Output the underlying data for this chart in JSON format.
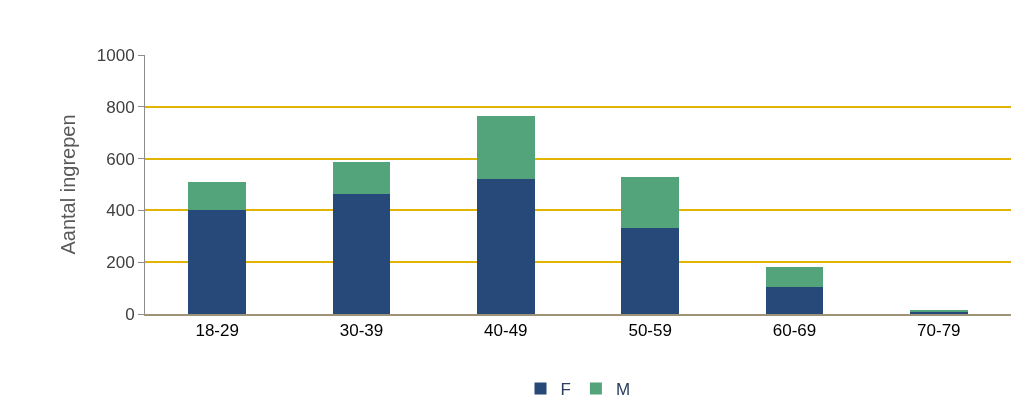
{
  "chart_data": {
    "type": "bar",
    "stacked": true,
    "ylabel": "Aantal ingrepen",
    "categories": [
      "18-29",
      "30-39",
      "40-49",
      "50-59",
      "60-69",
      "70-79"
    ],
    "series": [
      {
        "name": "F",
        "color": "#27497a",
        "values": [
          400,
          464,
          523,
          332,
          103,
          8
        ]
      },
      {
        "name": "M",
        "color": "#53a47b",
        "values": [
          108,
          122,
          241,
          198,
          78,
          9
        ]
      }
    ],
    "ylim": [
      0,
      1000
    ],
    "yticks": [
      0,
      200,
      400,
      600,
      800,
      1000
    ],
    "grid": "y",
    "legend": "bottom"
  }
}
